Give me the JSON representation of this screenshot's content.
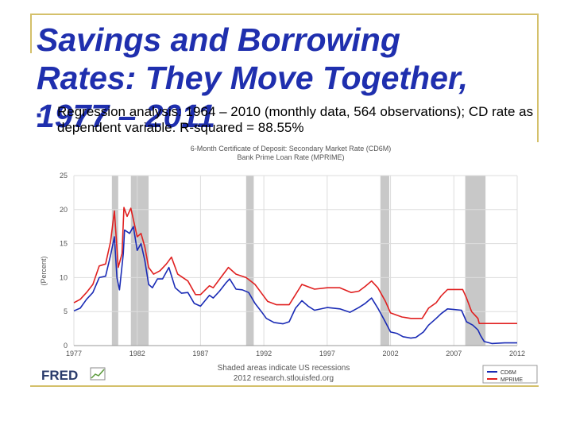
{
  "slide": {
    "title": "Savings and Borrowing\nRates: They Move Together,\n1977 – 2011",
    "bullet": "Regression analysis: 1964 – 2010 (monthly data, 564 observations); CD rate as dependent variable.  R-squared = 88.55%"
  },
  "colors": {
    "title": "#1f2fae",
    "cd6m": "#1a2bb5",
    "mprime": "#e02020",
    "recession": "#c8c8c8"
  },
  "chart_data": {
    "type": "line",
    "title": "6-Month Certificate of Deposit: Secondary Market Rate (CD6M)",
    "subtitle": "Bank Prime Loan Rate (MPRIME)",
    "ylabel": "(Percent)",
    "note": "Shaded areas indicate US recessions",
    "credit": "2012 research.stlouisfed.org",
    "brand": "FRED",
    "xlim": [
      1977,
      2012
    ],
    "ylim": [
      0,
      25
    ],
    "xticks": [
      "1977",
      "1982",
      "1987",
      "1992",
      "1997",
      "2002",
      "2007",
      "2012"
    ],
    "yticks": [
      "0",
      "5",
      "10",
      "15",
      "20",
      "25"
    ],
    "grid": true,
    "legend_position": "bottom-right",
    "recessions": [
      [
        1980.0,
        1980.5
      ],
      [
        1981.5,
        1982.9
      ],
      [
        1990.6,
        1991.2
      ],
      [
        2001.2,
        2001.9
      ],
      [
        2007.9,
        2009.5
      ]
    ],
    "series": [
      {
        "name": "CD6M",
        "color": "#1a2bb5",
        "points": [
          [
            1977.0,
            5.1
          ],
          [
            1977.5,
            5.5
          ],
          [
            1978.0,
            6.8
          ],
          [
            1978.5,
            7.8
          ],
          [
            1979.0,
            10.0
          ],
          [
            1979.5,
            10.2
          ],
          [
            1979.9,
            13.3
          ],
          [
            1980.2,
            16.0
          ],
          [
            1980.4,
            10.0
          ],
          [
            1980.6,
            8.2
          ],
          [
            1980.9,
            13.5
          ],
          [
            1981.0,
            17.0
          ],
          [
            1981.4,
            16.5
          ],
          [
            1981.7,
            17.5
          ],
          [
            1982.0,
            14.0
          ],
          [
            1982.3,
            15.0
          ],
          [
            1982.6,
            12.5
          ],
          [
            1982.9,
            9.0
          ],
          [
            1983.2,
            8.5
          ],
          [
            1983.6,
            9.8
          ],
          [
            1984.0,
            9.8
          ],
          [
            1984.5,
            11.5
          ],
          [
            1985.0,
            8.5
          ],
          [
            1985.5,
            7.7
          ],
          [
            1986.0,
            7.8
          ],
          [
            1986.5,
            6.2
          ],
          [
            1987.0,
            5.8
          ],
          [
            1987.7,
            7.4
          ],
          [
            1988.0,
            7.0
          ],
          [
            1988.5,
            8.0
          ],
          [
            1989.0,
            9.2
          ],
          [
            1989.3,
            9.8
          ],
          [
            1989.8,
            8.3
          ],
          [
            1990.3,
            8.2
          ],
          [
            1990.8,
            7.8
          ],
          [
            1991.3,
            6.2
          ],
          [
            1991.8,
            5.0
          ],
          [
            1992.2,
            4.0
          ],
          [
            1992.8,
            3.4
          ],
          [
            1993.5,
            3.2
          ],
          [
            1994.0,
            3.5
          ],
          [
            1994.5,
            5.5
          ],
          [
            1995.0,
            6.6
          ],
          [
            1995.5,
            5.8
          ],
          [
            1996.0,
            5.2
          ],
          [
            1997.0,
            5.6
          ],
          [
            1998.0,
            5.4
          ],
          [
            1998.8,
            4.9
          ],
          [
            1999.5,
            5.6
          ],
          [
            2000.0,
            6.2
          ],
          [
            2000.5,
            7.0
          ],
          [
            2001.0,
            5.5
          ],
          [
            2001.5,
            3.8
          ],
          [
            2002.0,
            2.0
          ],
          [
            2002.5,
            1.8
          ],
          [
            2003.0,
            1.3
          ],
          [
            2003.6,
            1.1
          ],
          [
            2004.0,
            1.2
          ],
          [
            2004.6,
            2.0
          ],
          [
            2005.0,
            3.0
          ],
          [
            2005.6,
            4.0
          ],
          [
            2006.0,
            4.7
          ],
          [
            2006.5,
            5.4
          ],
          [
            2007.0,
            5.3
          ],
          [
            2007.6,
            5.2
          ],
          [
            2008.0,
            3.5
          ],
          [
            2008.5,
            3.0
          ],
          [
            2008.9,
            2.3
          ],
          [
            2009.1,
            1.5
          ],
          [
            2009.4,
            0.6
          ],
          [
            2010.0,
            0.3
          ],
          [
            2011.0,
            0.4
          ],
          [
            2012.0,
            0.4
          ]
        ]
      },
      {
        "name": "MPRIME",
        "color": "#e02020",
        "points": [
          [
            1977.0,
            6.3
          ],
          [
            1977.5,
            6.8
          ],
          [
            1978.0,
            7.8
          ],
          [
            1978.5,
            9.0
          ],
          [
            1979.0,
            11.7
          ],
          [
            1979.5,
            12.0
          ],
          [
            1979.9,
            15.3
          ],
          [
            1980.2,
            19.8
          ],
          [
            1980.5,
            11.5
          ],
          [
            1980.8,
            13.5
          ],
          [
            1980.95,
            20.3
          ],
          [
            1981.2,
            19.0
          ],
          [
            1981.5,
            20.2
          ],
          [
            1982.0,
            16.0
          ],
          [
            1982.3,
            16.5
          ],
          [
            1982.6,
            14.5
          ],
          [
            1982.9,
            11.5
          ],
          [
            1983.3,
            10.5
          ],
          [
            1983.8,
            11.0
          ],
          [
            1984.3,
            12.0
          ],
          [
            1984.7,
            13.0
          ],
          [
            1985.2,
            10.5
          ],
          [
            1986.0,
            9.5
          ],
          [
            1986.6,
            7.5
          ],
          [
            1987.0,
            7.5
          ],
          [
            1987.7,
            8.8
          ],
          [
            1988.0,
            8.5
          ],
          [
            1988.6,
            10.0
          ],
          [
            1989.2,
            11.5
          ],
          [
            1989.8,
            10.5
          ],
          [
            1990.6,
            10.0
          ],
          [
            1991.3,
            9.0
          ],
          [
            1991.9,
            7.5
          ],
          [
            1992.3,
            6.5
          ],
          [
            1993.0,
            6.0
          ],
          [
            1994.0,
            6.0
          ],
          [
            1994.5,
            7.5
          ],
          [
            1995.0,
            9.0
          ],
          [
            1996.0,
            8.3
          ],
          [
            1997.0,
            8.5
          ],
          [
            1998.0,
            8.5
          ],
          [
            1998.9,
            7.8
          ],
          [
            1999.5,
            8.0
          ],
          [
            2000.0,
            8.7
          ],
          [
            2000.5,
            9.5
          ],
          [
            2001.0,
            8.5
          ],
          [
            2001.6,
            6.5
          ],
          [
            2002.0,
            4.8
          ],
          [
            2002.9,
            4.2
          ],
          [
            2003.6,
            4.0
          ],
          [
            2004.5,
            4.0
          ],
          [
            2005.0,
            5.5
          ],
          [
            2005.6,
            6.3
          ],
          [
            2006.0,
            7.3
          ],
          [
            2006.5,
            8.25
          ],
          [
            2007.7,
            8.25
          ],
          [
            2008.0,
            7.0
          ],
          [
            2008.4,
            5.0
          ],
          [
            2008.9,
            4.0
          ],
          [
            2009.0,
            3.25
          ],
          [
            2012.0,
            3.25
          ]
        ]
      }
    ]
  }
}
